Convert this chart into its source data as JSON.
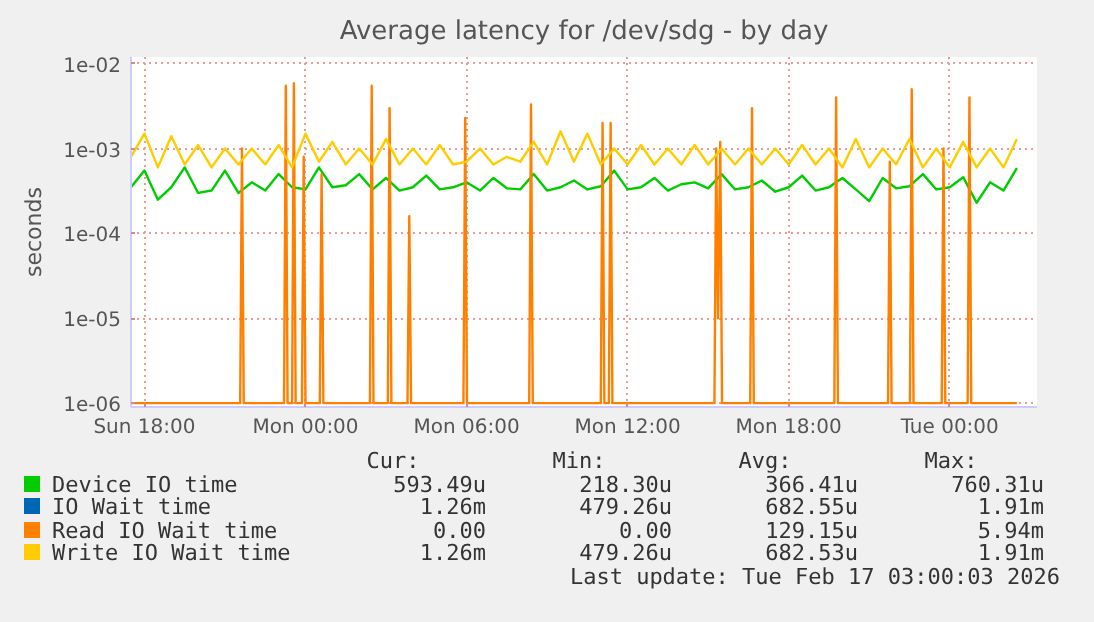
{
  "chart_data": {
    "type": "line",
    "title": "Average latency for /dev/sdg - by day",
    "ylabel": "seconds",
    "log": "y",
    "grid": true,
    "legend": "bottom",
    "xlim": [
      "2026-02-15T17:30",
      "2026-02-17T03:15"
    ],
    "ylim": [
      9e-07,
      0.012
    ],
    "xticks": [
      {
        "value": "2026-02-15T18:00",
        "label": "Sun 18:00"
      },
      {
        "value": "2026-02-16T00:00",
        "label": "Mon 00:00"
      },
      {
        "value": "2026-02-16T06:00",
        "label": "Mon 06:00"
      },
      {
        "value": "2026-02-16T12:00",
        "label": "Mon 12:00"
      },
      {
        "value": "2026-02-16T18:00",
        "label": "Mon 18:00"
      },
      {
        "value": "2026-02-17T00:00",
        "label": "Tue 00:00"
      }
    ],
    "yticks": [
      {
        "value": 1e-06,
        "label": "1e-06"
      },
      {
        "value": 1e-05,
        "label": "1e-05"
      },
      {
        "value": 0.0001,
        "label": "1e-04"
      },
      {
        "value": 0.001,
        "label": "1e-03"
      },
      {
        "value": 0.01,
        "label": "1e-02"
      }
    ],
    "x": [
      "2026-02-15T17:30",
      "2026-02-15T18:00",
      "2026-02-15T18:30",
      "2026-02-15T19:00",
      "2026-02-15T19:30",
      "2026-02-15T20:00",
      "2026-02-15T20:30",
      "2026-02-15T21:00",
      "2026-02-15T21:30",
      "2026-02-15T22:00",
      "2026-02-15T22:30",
      "2026-02-15T23:00",
      "2026-02-15T23:30",
      "2026-02-16T00:00",
      "2026-02-16T00:30",
      "2026-02-16T01:00",
      "2026-02-16T01:30",
      "2026-02-16T02:00",
      "2026-02-16T02:30",
      "2026-02-16T03:00",
      "2026-02-16T03:30",
      "2026-02-16T04:00",
      "2026-02-16T04:30",
      "2026-02-16T05:00",
      "2026-02-16T05:30",
      "2026-02-16T06:00",
      "2026-02-16T06:30",
      "2026-02-16T07:00",
      "2026-02-16T07:30",
      "2026-02-16T08:00",
      "2026-02-16T08:30",
      "2026-02-16T09:00",
      "2026-02-16T09:30",
      "2026-02-16T10:00",
      "2026-02-16T10:30",
      "2026-02-16T11:00",
      "2026-02-16T11:30",
      "2026-02-16T12:00",
      "2026-02-16T12:30",
      "2026-02-16T13:00",
      "2026-02-16T13:30",
      "2026-02-16T14:00",
      "2026-02-16T14:30",
      "2026-02-16T15:00",
      "2026-02-16T15:30",
      "2026-02-16T16:00",
      "2026-02-16T16:30",
      "2026-02-16T17:00",
      "2026-02-16T17:30",
      "2026-02-16T18:00",
      "2026-02-16T18:30",
      "2026-02-16T19:00",
      "2026-02-16T19:30",
      "2026-02-16T20:00",
      "2026-02-16T20:30",
      "2026-02-16T21:00",
      "2026-02-16T21:30",
      "2026-02-16T22:00",
      "2026-02-16T22:30",
      "2026-02-16T23:00",
      "2026-02-16T23:30",
      "2026-02-17T00:00",
      "2026-02-17T00:30",
      "2026-02-17T01:00",
      "2026-02-17T01:30",
      "2026-02-17T02:00",
      "2026-02-17T02:30"
    ],
    "series": [
      {
        "name": "Device IO time",
        "color": "#00cc00",
        "values": [
          0.00035,
          0.00055,
          0.00025,
          0.00035,
          0.0006,
          0.0003,
          0.00032,
          0.00055,
          0.0003,
          0.0004,
          0.00032,
          0.0005,
          0.00035,
          0.00033,
          0.0006,
          0.00035,
          0.00037,
          0.0005,
          0.00033,
          0.00045,
          0.00032,
          0.00035,
          0.00048,
          0.00033,
          0.00035,
          0.0004,
          0.00032,
          0.00045,
          0.00034,
          0.00033,
          0.0005,
          0.00032,
          0.00035,
          0.00042,
          0.00033,
          0.00036,
          0.00055,
          0.00033,
          0.00035,
          0.00045,
          0.00032,
          0.00038,
          0.0004,
          0.00034,
          0.0005,
          0.00033,
          0.00035,
          0.00042,
          0.00031,
          0.00035,
          0.00048,
          0.00032,
          0.00035,
          0.00045,
          0.00033,
          0.00024,
          0.00045,
          0.00034,
          0.00036,
          0.0005,
          0.00033,
          0.00035,
          0.00046,
          0.00023,
          0.0004,
          0.00032,
          0.00059
        ]
      },
      {
        "name": "IO Wait time",
        "color": "#0066b3",
        "values": [
          null,
          null,
          null,
          null,
          null,
          null,
          null,
          null,
          null,
          null,
          null,
          null,
          null,
          null,
          null,
          null,
          null,
          null,
          null,
          null,
          null,
          null,
          null,
          null,
          null,
          null,
          null,
          null,
          null,
          null,
          null,
          null,
          null,
          null,
          null,
          null,
          null,
          null,
          null,
          null,
          null,
          null,
          null,
          null,
          null,
          null,
          null,
          null,
          null,
          null,
          null,
          null,
          null,
          null,
          null,
          null,
          null,
          null,
          null,
          null,
          null,
          null,
          null,
          null,
          null,
          null,
          null
        ]
      },
      {
        "name": "Read IO Wait time",
        "color": "#ff8000",
        "x": [
          "2026-02-15T17:30",
          "2026-02-15T21:34",
          "2026-02-15T21:38",
          "2026-02-15T21:42",
          "2026-02-15T23:12",
          "2026-02-15T23:16",
          "2026-02-15T23:20",
          "2026-02-15T23:30",
          "2026-02-15T23:34",
          "2026-02-15T23:38",
          "2026-02-15T23:52",
          "2026-02-15T23:56",
          "2026-02-16T00:00",
          "2026-02-16T00:32",
          "2026-02-16T00:36",
          "2026-02-16T00:40",
          "2026-02-16T02:24",
          "2026-02-16T02:28",
          "2026-02-16T02:32",
          "2026-02-16T03:04",
          "2026-02-16T03:08",
          "2026-02-16T03:12",
          "2026-02-16T03:48",
          "2026-02-16T03:52",
          "2026-02-16T03:56",
          "2026-02-16T05:53",
          "2026-02-16T05:57",
          "2026-02-16T06:01",
          "2026-02-16T08:20",
          "2026-02-16T08:24",
          "2026-02-16T08:28",
          "2026-02-16T11:00",
          "2026-02-16T11:04",
          "2026-02-16T11:08",
          "2026-02-16T11:18",
          "2026-02-16T11:22",
          "2026-02-16T11:26",
          "2026-02-16T15:14",
          "2026-02-16T15:18",
          "2026-02-16T15:22",
          "2026-02-16T15:27",
          "2026-02-16T15:31",
          "2026-02-16T16:34",
          "2026-02-16T16:38",
          "2026-02-16T16:42",
          "2026-02-16T19:42",
          "2026-02-16T19:46",
          "2026-02-16T19:50",
          "2026-02-16T21:42",
          "2026-02-16T21:46",
          "2026-02-16T21:50",
          "2026-02-16T22:31",
          "2026-02-16T22:35",
          "2026-02-16T22:39",
          "2026-02-16T23:42",
          "2026-02-16T23:46",
          "2026-02-16T23:50",
          "2026-02-17T00:40",
          "2026-02-17T00:44",
          "2026-02-17T00:48",
          "2026-02-17T02:30"
        ],
        "values": [
          1e-06,
          1e-06,
          0.001,
          1e-06,
          1e-06,
          0.0055,
          1e-06,
          1e-06,
          0.0059,
          1e-06,
          1e-06,
          0.0008,
          1e-06,
          1e-06,
          0.0005,
          1e-06,
          1e-06,
          0.0055,
          1e-06,
          1e-06,
          0.003,
          1e-06,
          1e-06,
          0.00016,
          1e-06,
          1e-06,
          0.0023,
          1e-06,
          1e-06,
          0.0033,
          1e-06,
          1e-06,
          0.002,
          1e-06,
          1e-06,
          0.002,
          1e-06,
          1e-06,
          0.001,
          1e-05,
          0.0012,
          1e-06,
          1e-06,
          0.003,
          1e-06,
          1e-06,
          0.004,
          1e-06,
          1e-06,
          0.0007,
          1e-06,
          1e-06,
          0.005,
          1e-06,
          1e-06,
          0.001,
          1e-06,
          1e-06,
          0.004,
          1e-06,
          1e-06
        ]
      },
      {
        "name": "Write IO Wait time",
        "color": "#ffcc00",
        "values": [
          0.0008,
          0.0015,
          0.0006,
          0.0014,
          0.00065,
          0.0011,
          0.0006,
          0.001,
          0.00065,
          0.001,
          0.00065,
          0.0011,
          0.0006,
          0.0015,
          0.0007,
          0.0012,
          0.00065,
          0.001,
          0.00065,
          0.0013,
          0.00065,
          0.001,
          0.00065,
          0.0011,
          0.00065,
          0.0007,
          0.001,
          0.00065,
          0.0008,
          0.0007,
          0.0012,
          0.00065,
          0.0016,
          0.0007,
          0.0015,
          0.00065,
          0.001,
          0.00065,
          0.0011,
          0.00065,
          0.001,
          0.00065,
          0.0011,
          0.00065,
          0.001,
          0.00065,
          0.001,
          0.00065,
          0.001,
          0.00065,
          0.0011,
          0.00065,
          0.001,
          0.0006,
          0.0013,
          0.0006,
          0.001,
          0.00065,
          0.0013,
          0.0006,
          0.001,
          0.0006,
          0.0012,
          0.0006,
          0.001,
          0.0006,
          0.0013
        ]
      }
    ],
    "annotations": [
      "Cur:",
      "Min:",
      "Avg:",
      "Max:",
      "593.49u",
      "218.30u",
      "366.41u",
      "760.31u",
      "1.26m",
      "479.26u",
      "682.55u",
      "1.91m",
      "0.00",
      "0.00",
      "129.15u",
      "5.94m",
      "1.26m",
      "479.26u",
      "682.53u",
      "1.91m",
      "Last update: Tue Feb 17 03:00:03 2026"
    ]
  }
}
